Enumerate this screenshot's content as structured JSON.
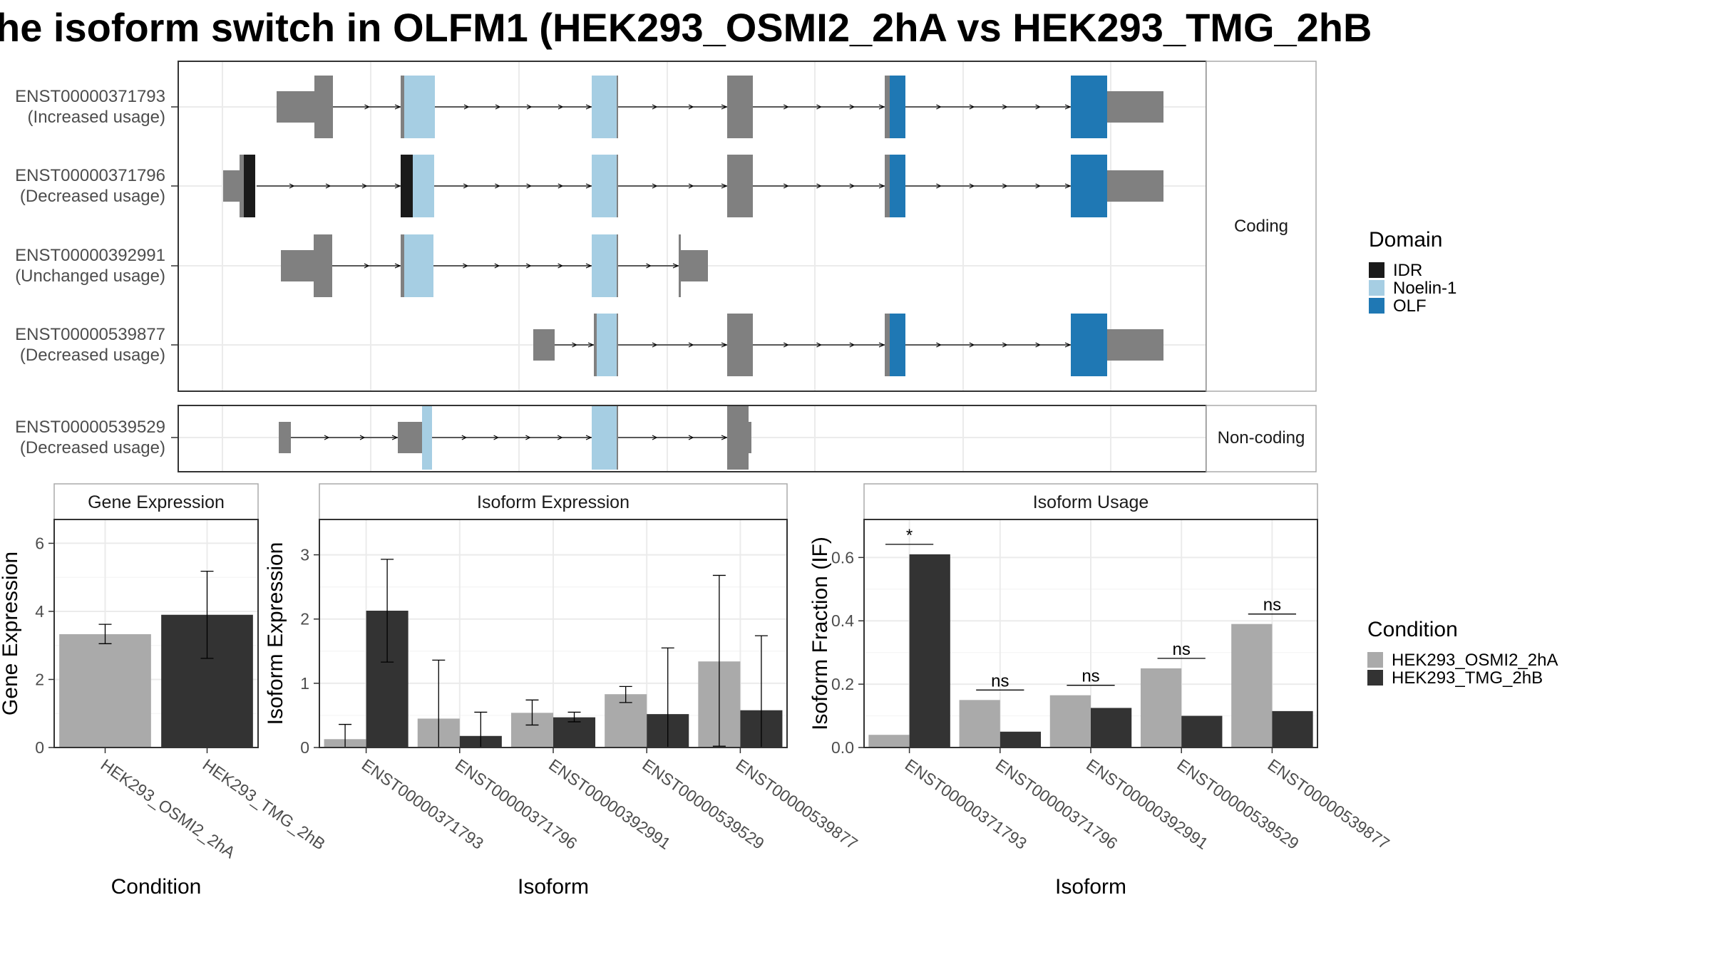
{
  "title": "he isoform switch in OLFM1 (HEK293_OSMI2_2hA vs HEK293_TMG_2hB",
  "colors": {
    "grey_exon": "#808080",
    "idr": "#1a1a1a",
    "noelin": "#a6cee3",
    "olf": "#1f78b4",
    "osmi": "#aaaaaa",
    "tmg": "#333333",
    "grid": "#ebebeb",
    "panel_border": "#333333",
    "strip_border": "#aaaaaa"
  },
  "structure": {
    "coding_label": "Coding",
    "noncoding_label": "Non-coding",
    "transcripts": [
      {
        "id": "ENST00000371793",
        "usage": "(Increased usage)",
        "group": "coding"
      },
      {
        "id": "ENST00000371796",
        "usage": "(Decreased usage)",
        "group": "coding"
      },
      {
        "id": "ENST00000392991",
        "usage": "(Unchanged usage)",
        "group": "coding"
      },
      {
        "id": "ENST00000539877",
        "usage": "(Decreased usage)",
        "group": "coding"
      },
      {
        "id": "ENST00000539529",
        "usage": "(Decreased usage)",
        "group": "noncoding"
      }
    ]
  },
  "legend_domain": {
    "title": "Domain",
    "items": [
      {
        "label": "IDR",
        "color": "#1a1a1a"
      },
      {
        "label": "Noelin-1",
        "color": "#a6cee3"
      },
      {
        "label": "OLF",
        "color": "#1f78b4"
      }
    ]
  },
  "legend_condition": {
    "title": "Condition",
    "items": [
      {
        "label": "HEK293_OSMI2_2hA",
        "color": "#aaaaaa"
      },
      {
        "label": "HEK293_TMG_2hB",
        "color": "#333333"
      }
    ]
  },
  "chart_data": [
    {
      "type": "bar",
      "title": "Gene Expression",
      "xlabel": "Condition",
      "ylabel": "Gene Expression",
      "ylim": [
        0,
        6.7
      ],
      "yticks": [
        0,
        2,
        4,
        6
      ],
      "categories": [
        "HEK293_OSMI2_2hA",
        "HEK293_TMG_2hB"
      ],
      "values": [
        3.33,
        3.9
      ],
      "err_low": [
        3.05,
        2.62
      ],
      "err_high": [
        3.62,
        5.18
      ]
    },
    {
      "type": "bar",
      "title": "Isoform Expression",
      "xlabel": "Isoform",
      "ylabel": "Isoform Expression",
      "ylim": [
        0,
        3.55
      ],
      "yticks": [
        0,
        1,
        2,
        3
      ],
      "categories": [
        "ENST00000371793",
        "ENST00000371796",
        "ENST00000392991",
        "ENST00000539529",
        "ENST00000539877"
      ],
      "series": [
        {
          "name": "HEK293_OSMI2_2hA",
          "values": [
            0.13,
            0.45,
            0.54,
            0.83,
            1.34
          ],
          "err_low": [
            0.0,
            0.0,
            0.35,
            0.7,
            0.02
          ],
          "err_high": [
            0.36,
            1.36,
            0.74,
            0.95,
            2.68
          ]
        },
        {
          "name": "HEK293_TMG_2hB",
          "values": [
            2.13,
            0.18,
            0.47,
            0.52,
            0.58
          ],
          "err_low": [
            1.33,
            0.0,
            0.4,
            0.0,
            0.0
          ],
          "err_high": [
            2.93,
            0.55,
            0.55,
            1.55,
            1.74
          ]
        }
      ]
    },
    {
      "type": "bar",
      "title": "Isoform Usage",
      "xlabel": "Isoform",
      "ylabel": "Isoform Fraction (IF)",
      "ylim": [
        0,
        0.72
      ],
      "yticks": [
        0.0,
        0.2,
        0.4,
        0.6
      ],
      "ytick_labels": [
        "0.0",
        "0.2",
        "0.4",
        "0.6"
      ],
      "categories": [
        "ENST00000371793",
        "ENST00000371796",
        "ENST00000392991",
        "ENST00000539529",
        "ENST00000539877"
      ],
      "series": [
        {
          "name": "HEK293_OSMI2_2hA",
          "values": [
            0.04,
            0.15,
            0.165,
            0.25,
            0.39
          ]
        },
        {
          "name": "HEK293_TMG_2hB",
          "values": [
            0.61,
            0.05,
            0.125,
            0.1,
            0.115
          ]
        }
      ],
      "significance": [
        "*",
        "ns",
        "ns",
        "ns",
        "ns"
      ]
    }
  ]
}
